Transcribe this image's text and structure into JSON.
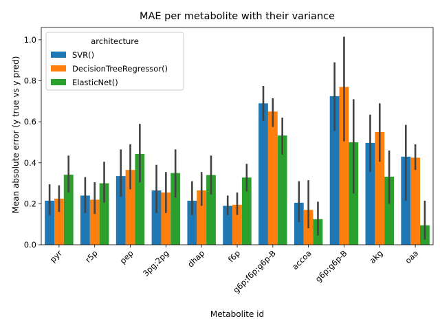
{
  "chart_data": {
    "type": "bar",
    "title": "MAE per metabolite with their variance",
    "xlabel": "Metabolite id",
    "ylabel": "Mean absolute error (y true vs y pred)",
    "ylim": [
      0,
      1.06
    ],
    "yticks": [
      0.0,
      0.2,
      0.4,
      0.6,
      0.8,
      1.0
    ],
    "ytick_labels": [
      "0.0",
      "0.2",
      "0.4",
      "0.6",
      "0.8",
      "1.0"
    ],
    "grid": false,
    "legend": {
      "title": "architecture",
      "placement": "top-left"
    },
    "categories": [
      "pyr",
      "r5p",
      "pep",
      "3pg;2pg",
      "dhap",
      "f6p",
      "g6p;f6p;g6p-B",
      "accoa",
      "g6p;g6p-B",
      "akg",
      "oaa"
    ],
    "series": [
      {
        "name": "SVR()",
        "color": "#1f77b4",
        "values": [
          0.215,
          0.24,
          0.335,
          0.265,
          0.215,
          0.19,
          0.69,
          0.205,
          0.725,
          0.497,
          0.43
        ],
        "ci_low": [
          0.145,
          0.155,
          0.235,
          0.155,
          0.145,
          0.145,
          0.605,
          0.11,
          0.555,
          0.355,
          0.215
        ],
        "ci_high": [
          0.295,
          0.33,
          0.465,
          0.39,
          0.31,
          0.24,
          0.775,
          0.31,
          0.89,
          0.635,
          0.585
        ]
      },
      {
        "name": "DecisionTreeRegressor()",
        "color": "#ff7f0e",
        "values": [
          0.225,
          0.22,
          0.365,
          0.255,
          0.265,
          0.195,
          0.65,
          0.17,
          0.77,
          0.55,
          0.425
        ],
        "ci_low": [
          0.16,
          0.15,
          0.27,
          0.155,
          0.19,
          0.145,
          0.575,
          0.08,
          0.505,
          0.405,
          0.365
        ],
        "ci_high": [
          0.29,
          0.305,
          0.49,
          0.355,
          0.355,
          0.255,
          0.715,
          0.315,
          1.015,
          0.69,
          0.49
        ]
      },
      {
        "name": "ElasticNet()",
        "color": "#2ca02c",
        "values": [
          0.342,
          0.3,
          0.443,
          0.35,
          0.34,
          0.328,
          0.533,
          0.125,
          0.5,
          0.332,
          0.095
        ],
        "ci_low": [
          0.255,
          0.205,
          0.305,
          0.23,
          0.245,
          0.26,
          0.44,
          0.045,
          0.25,
          0.2,
          0.025
        ],
        "ci_high": [
          0.435,
          0.405,
          0.59,
          0.465,
          0.435,
          0.395,
          0.62,
          0.21,
          0.71,
          0.46,
          0.215
        ]
      }
    ]
  }
}
